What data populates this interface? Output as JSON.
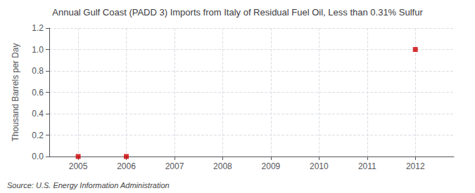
{
  "chart_data": {
    "type": "scatter",
    "title": "Annual Gulf Coast (PADD 3) Imports from Italy of Residual Fuel Oil, Less than 0.31% Sulfur",
    "ylabel": "Thousand Barrels per Day",
    "annotations": [
      "Source: U.S. Energy Information Administration"
    ],
    "x": [
      2005,
      2006,
      2012
    ],
    "values": [
      0.0,
      0.0,
      1.0
    ],
    "color": "#cc0000",
    "marker": "square",
    "xlim": [
      2004.4,
      2012.8
    ],
    "ylim": [
      0.0,
      1.2
    ],
    "xticks": [
      2005,
      2006,
      2007,
      2008,
      2009,
      2010,
      2011,
      2012
    ],
    "yticks": [
      {
        "value": 0.0,
        "label": "0.0"
      },
      0.2,
      0.4,
      0.6,
      0.8,
      {
        "value": 1.0,
        "label": "1.0"
      },
      1.2
    ],
    "grid": true
  }
}
